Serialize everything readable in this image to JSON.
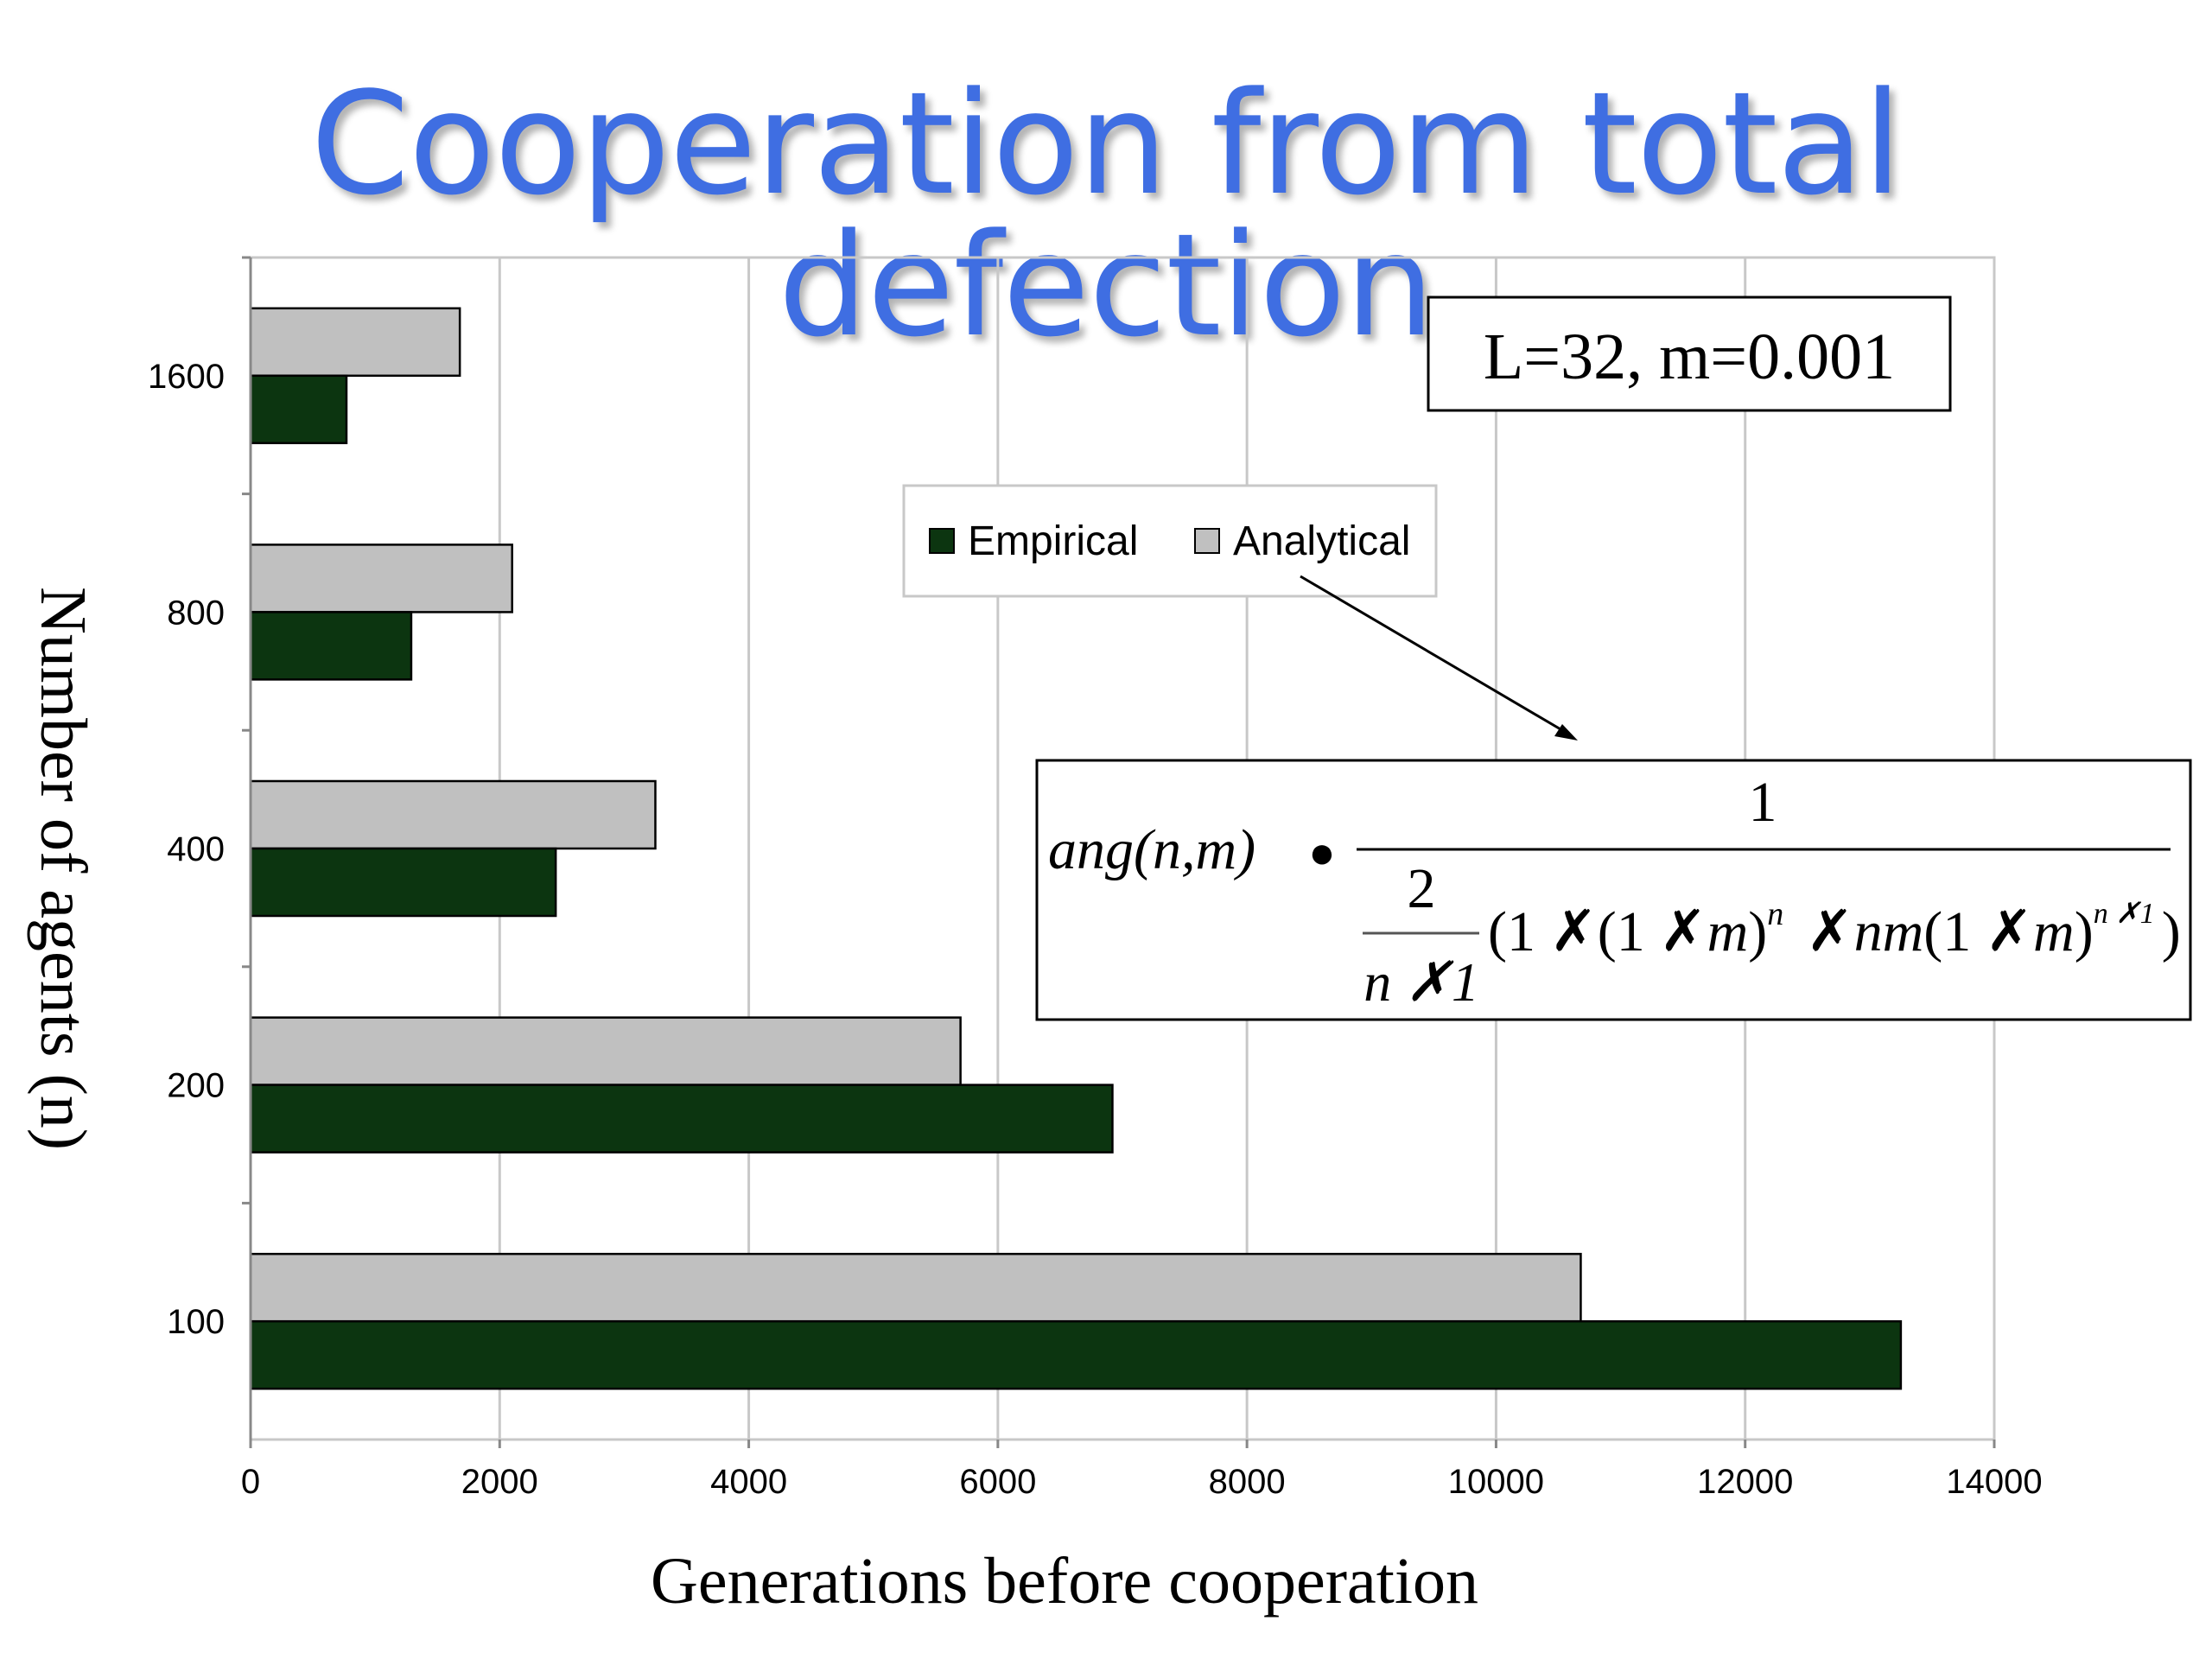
{
  "slide": {
    "title": "Cooperation from total defection"
  },
  "chart_data": {
    "type": "bar",
    "orientation": "horizontal",
    "categories": [
      "100",
      "200",
      "400",
      "800",
      "1600"
    ],
    "series": [
      {
        "name": "Empirical",
        "values": [
          13250,
          6920,
          2450,
          1290,
          770
        ],
        "color": "#0c3510"
      },
      {
        "name": "Analytical",
        "values": [
          10680,
          5700,
          3250,
          2100,
          1680
        ],
        "color": "#c0c0c0"
      }
    ],
    "xlim": [
      0,
      14000
    ],
    "x_ticks": [
      "0",
      "2000",
      "4000",
      "6000",
      "8000",
      "10000",
      "12000",
      "14000"
    ],
    "xlabel": "Generations before cooperation",
    "ylabel": "Number of agents (n)",
    "grid": "vertical",
    "legend": "upper-center",
    "annotation_params": "L=32, m=0.001",
    "formula": {
      "lhs": "ang(n,m)",
      "equals": "●",
      "numerator": "1",
      "small_num": "2",
      "small_den": "n ✗1",
      "denominator": "(1 ✗(1 ✗m)ⁿ ✗nm(1 ✗m)ⁿ ✗¹)",
      "denom_open": "(1 ",
      "denom_x1": "✗",
      "denom_mid1": "(1 ",
      "denom_x2": "✗",
      "denom_m1": "m",
      "denom_close1": ")",
      "denom_exp1": "n",
      "denom_x3": "✗",
      "denom_nm": "nm",
      "denom_mid2": "(1 ",
      "denom_x4": "✗",
      "denom_m2": "m",
      "denom_close2": ")",
      "denom_exp2": "n ✗1",
      "denom_end": ")"
    }
  }
}
